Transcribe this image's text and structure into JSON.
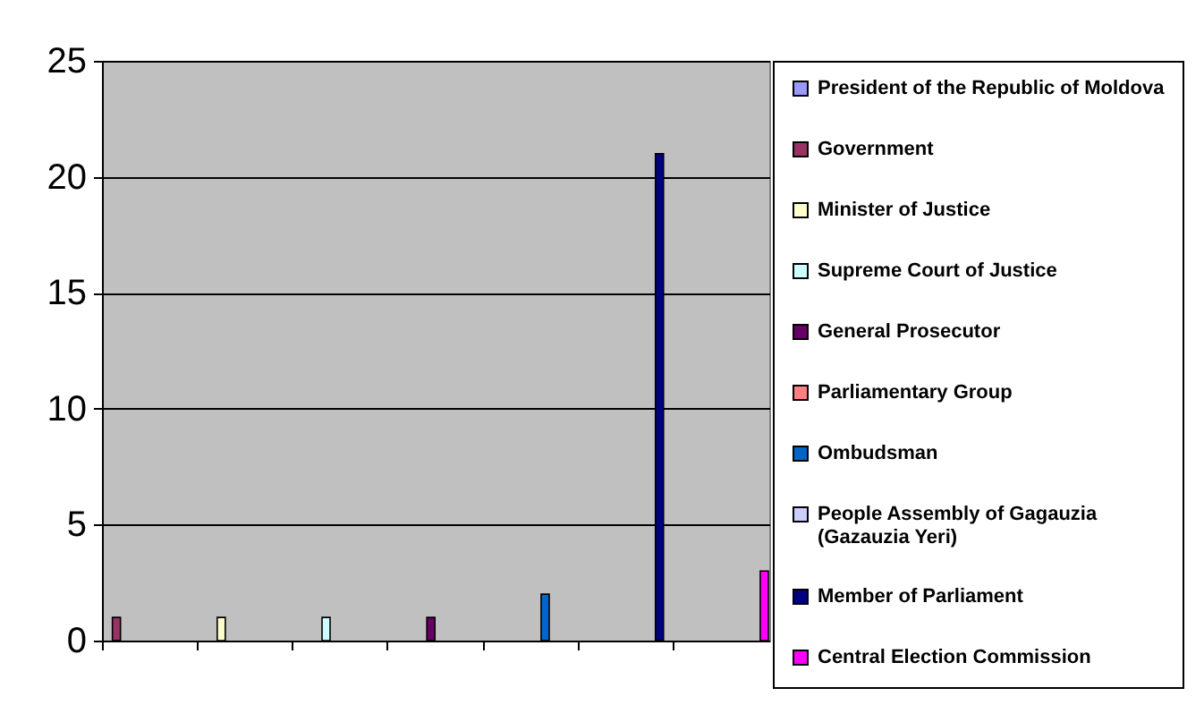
{
  "chart_data": {
    "type": "bar",
    "categories": [
      null,
      null,
      null,
      null,
      null,
      null,
      null
    ],
    "ylim": [
      0,
      25
    ],
    "yticks": [
      0,
      5,
      10,
      15,
      20,
      25
    ],
    "grid": "y",
    "legend": "right",
    "series": [
      {
        "name": "President of the Republic of Moldova",
        "color": "#9999ff",
        "values": [
          null,
          null,
          null,
          null,
          null,
          null,
          null
        ]
      },
      {
        "name": "Government",
        "color": "#993366",
        "values": [
          1,
          null,
          null,
          null,
          null,
          null,
          null
        ]
      },
      {
        "name": "Minister of Justice",
        "color": "#ffffcc",
        "values": [
          null,
          1,
          null,
          null,
          null,
          null,
          null
        ]
      },
      {
        "name": "Supreme Court of Justice",
        "color": "#ccffff",
        "values": [
          null,
          null,
          1,
          null,
          null,
          null,
          null
        ]
      },
      {
        "name": "General Prosecutor",
        "color": "#660066",
        "values": [
          null,
          null,
          null,
          1,
          null,
          null,
          null
        ]
      },
      {
        "name": "Parliamentary Group",
        "color": "#ff8080",
        "values": [
          null,
          null,
          null,
          null,
          null,
          null,
          null
        ]
      },
      {
        "name": "Ombudsman",
        "color": "#0066cc",
        "values": [
          null,
          null,
          null,
          null,
          2,
          null,
          null
        ]
      },
      {
        "name": "People Assembly of Gagauzia (Gazauzia Yeri)",
        "color": "#ccccff",
        "values": [
          null,
          null,
          null,
          null,
          null,
          null,
          null
        ]
      },
      {
        "name": "Member of Parliament",
        "color": "#000080",
        "values": [
          null,
          null,
          null,
          null,
          null,
          21,
          null
        ]
      },
      {
        "name": "Central Election Commission",
        "color": "#ff00ff",
        "values": [
          null,
          null,
          null,
          null,
          null,
          null,
          3
        ]
      }
    ]
  }
}
